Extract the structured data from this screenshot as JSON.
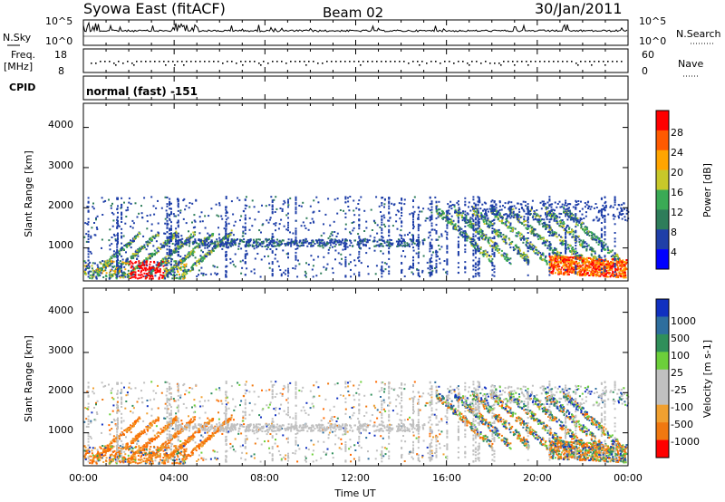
{
  "header": {
    "title": "Syowa East (fitACF)",
    "beam": "Beam 02",
    "date": "30/Jan/2011"
  },
  "noise_panel": {
    "left_label": "N.Sky",
    "right_label": "N.Search",
    "tick_top": "10^5",
    "tick_bottom": "10^0",
    "right_tick_top": "10^5",
    "right_tick_bottom": "10^0"
  },
  "freq_panel": {
    "left_label_1": "Freq.",
    "left_label_2": "[MHz]",
    "right_label": "Nave",
    "tick_top": "18",
    "tick_bottom": "8",
    "right_tick_top": "60",
    "right_tick_bottom": "0"
  },
  "cpid_panel": {
    "label": "CPID",
    "value": "normal (fast) -151"
  },
  "x_axis": {
    "label": "Time UT",
    "ticks": [
      "00:00",
      "04:00",
      "08:00",
      "12:00",
      "16:00",
      "20:00",
      "00:00"
    ]
  },
  "power_panel": {
    "ylabel": "Slant Range [km]",
    "yticks": [
      "4000",
      "3000",
      "2000",
      "1000"
    ],
    "colorbar_label": "Power [dB]",
    "colorbar_ticks": [
      "28",
      "24",
      "20",
      "16",
      "12",
      "8",
      "4"
    ],
    "colors": [
      "#0000ff",
      "#1f3fa8",
      "#2e7d5a",
      "#3aaa55",
      "#c8c82a",
      "#ffa500",
      "#ff5a00",
      "#ff0000"
    ]
  },
  "velocity_panel": {
    "ylabel": "Slant Range [km]",
    "yticks": [
      "4000",
      "3000",
      "2000",
      "1000"
    ],
    "colorbar_label": "Velocity [m s-1]",
    "colorbar_ticks": [
      "1000",
      "500",
      "100",
      "25",
      "-25",
      "-100",
      "-500",
      "-1000"
    ],
    "colors": [
      "#1030c0",
      "#2e6e9e",
      "#2f8f5a",
      "#6ccf3a",
      "#c0c0c0",
      "#c0c0c0",
      "#f0a030",
      "#f07810",
      "#ff0000"
    ]
  },
  "chart_data": {
    "type": "heatmap",
    "x_range": [
      "00:00",
      "24:00"
    ],
    "y_range_km": [
      180,
      4600
    ],
    "power_dB_range": [
      0,
      32
    ],
    "velocity_range": [
      -1000,
      1000
    ],
    "grid": false
  }
}
